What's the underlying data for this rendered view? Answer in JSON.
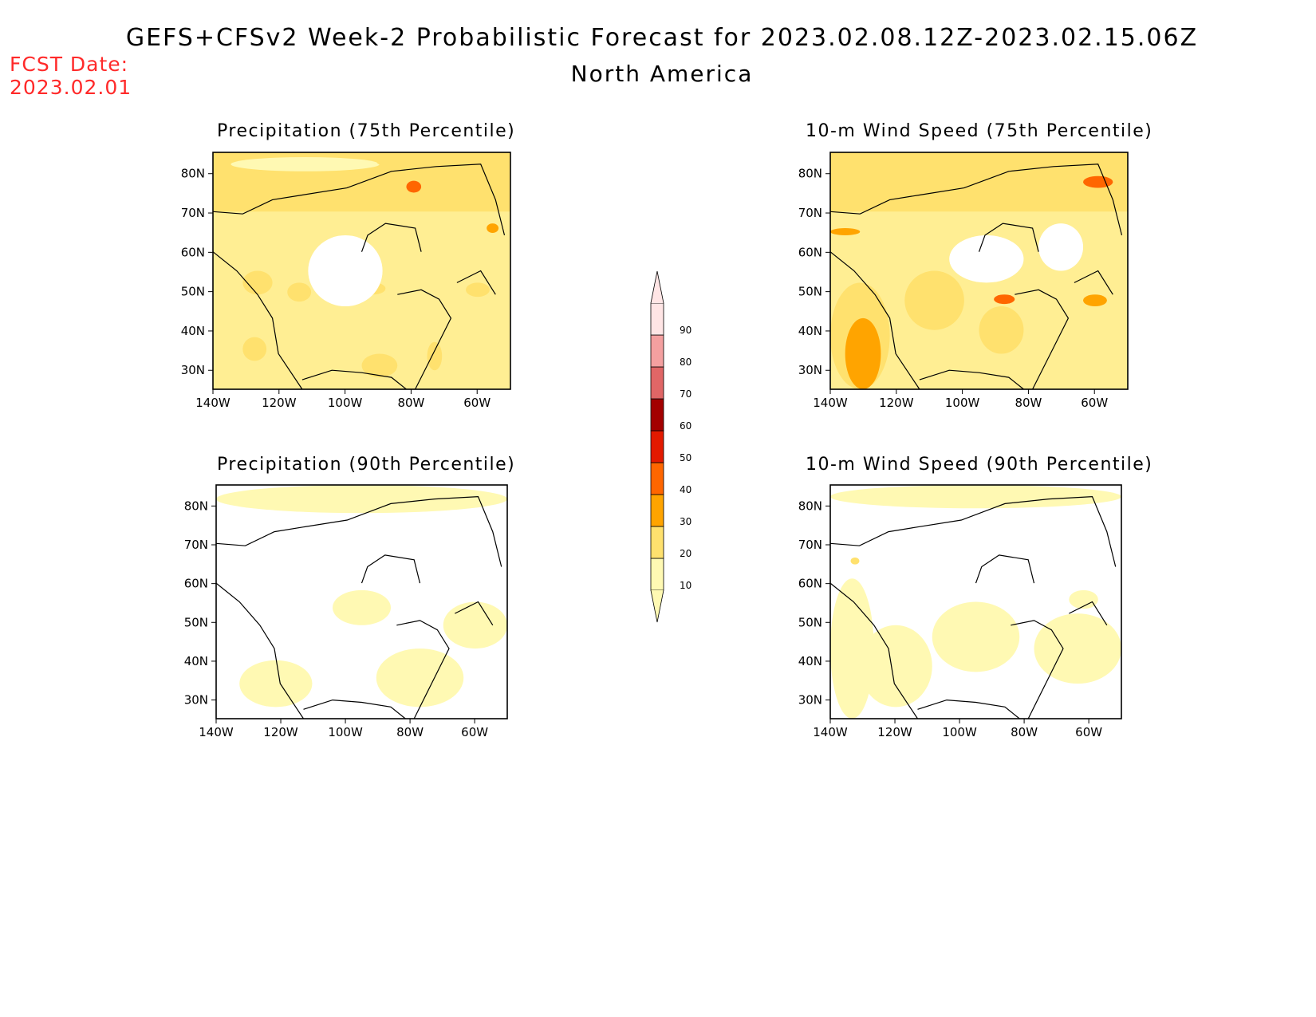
{
  "header": {
    "title": "GEFS+CFSv2 Week-2 Probabilistic Forecast for 2023.02.08.12Z-2023.02.15.06Z",
    "region": "North America",
    "fcst_date_label": "FCST Date:",
    "fcst_date_value": "2023.02.01"
  },
  "axes": {
    "lat_labels": [
      "80N",
      "70N",
      "60N",
      "50N",
      "40N",
      "30N"
    ],
    "lon_labels": [
      "140W",
      "120W",
      "100W",
      "80W",
      "60W"
    ]
  },
  "panels": [
    {
      "id": "precip-75",
      "title": "Precipitation (75th Percentile)"
    },
    {
      "id": "wind-75",
      "title": "10-m Wind Speed (75th Percentile)"
    },
    {
      "id": "precip-90",
      "title": "Precipitation (90th Percentile)"
    },
    {
      "id": "wind-90",
      "title": "10-m Wind Speed (90th Percentile)"
    }
  ],
  "colorbar": {
    "levels": [
      "10",
      "20",
      "30",
      "40",
      "50",
      "60",
      "70",
      "80",
      "90"
    ],
    "colors": [
      "#fff9b3",
      "#ffe16e",
      "#ffa400",
      "#ff6600",
      "#e31a00",
      "#a30000",
      "#e06666",
      "#f4a0a0",
      "#ffe5e5"
    ]
  }
}
